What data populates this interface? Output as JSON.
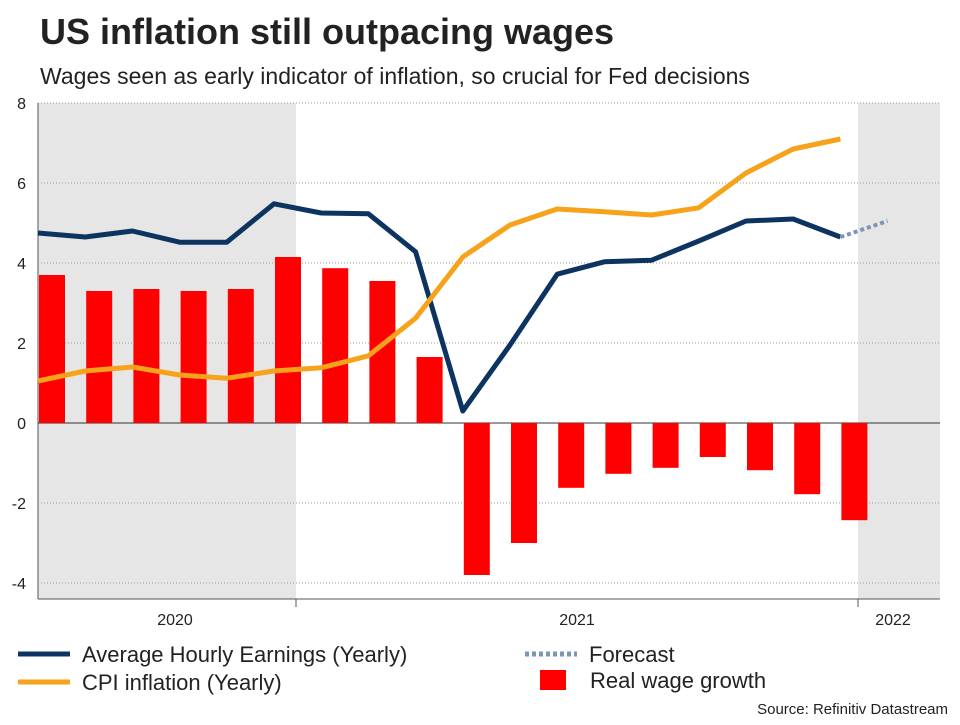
{
  "chart_data": {
    "type": "bar_line",
    "title": "US inflation still outpacing wages",
    "subtitle": "Wages seen as early indicator of inflation, so crucial for Fed decisions",
    "period_labels": [
      "2020",
      "2021",
      "2022"
    ],
    "source": "Source: Refinitiv Datastream",
    "ylim": [
      -4,
      8
    ],
    "yticks": [
      -4,
      -2,
      0,
      2,
      4,
      6,
      8
    ],
    "grid": true,
    "series": [
      {
        "name": "Average Hourly Earnings (Yearly)",
        "kind": "line",
        "color": "#0d3461",
        "values": [
          4.75,
          4.65,
          4.8,
          4.52,
          4.52,
          5.48,
          5.25,
          5.23,
          4.28,
          0.3,
          1.95,
          3.72,
          4.03,
          4.07,
          4.55,
          5.05,
          5.1,
          4.65,
          null
        ]
      },
      {
        "name": "CPI inflation (Yearly)",
        "kind": "line",
        "color": "#f7a21b",
        "values": [
          1.05,
          1.3,
          1.4,
          1.2,
          1.12,
          1.3,
          1.38,
          1.68,
          2.62,
          4.15,
          4.95,
          5.35,
          5.28,
          5.2,
          5.38,
          6.25,
          6.85,
          7.1,
          null
        ]
      },
      {
        "name": "Forecast",
        "kind": "dotted",
        "color": "#7f95b3",
        "values": [
          null,
          null,
          null,
          null,
          null,
          null,
          null,
          null,
          null,
          null,
          null,
          null,
          null,
          null,
          null,
          null,
          null,
          4.65,
          5.05
        ]
      },
      {
        "name": "Real wage growth",
        "kind": "bar",
        "color": "#ff0000",
        "values": [
          3.7,
          3.3,
          3.35,
          3.3,
          3.35,
          4.15,
          3.87,
          3.55,
          1.65,
          -3.8,
          -3.0,
          -1.62,
          -1.27,
          -1.12,
          -0.85,
          -1.18,
          -1.78,
          -2.43,
          null
        ]
      }
    ]
  }
}
